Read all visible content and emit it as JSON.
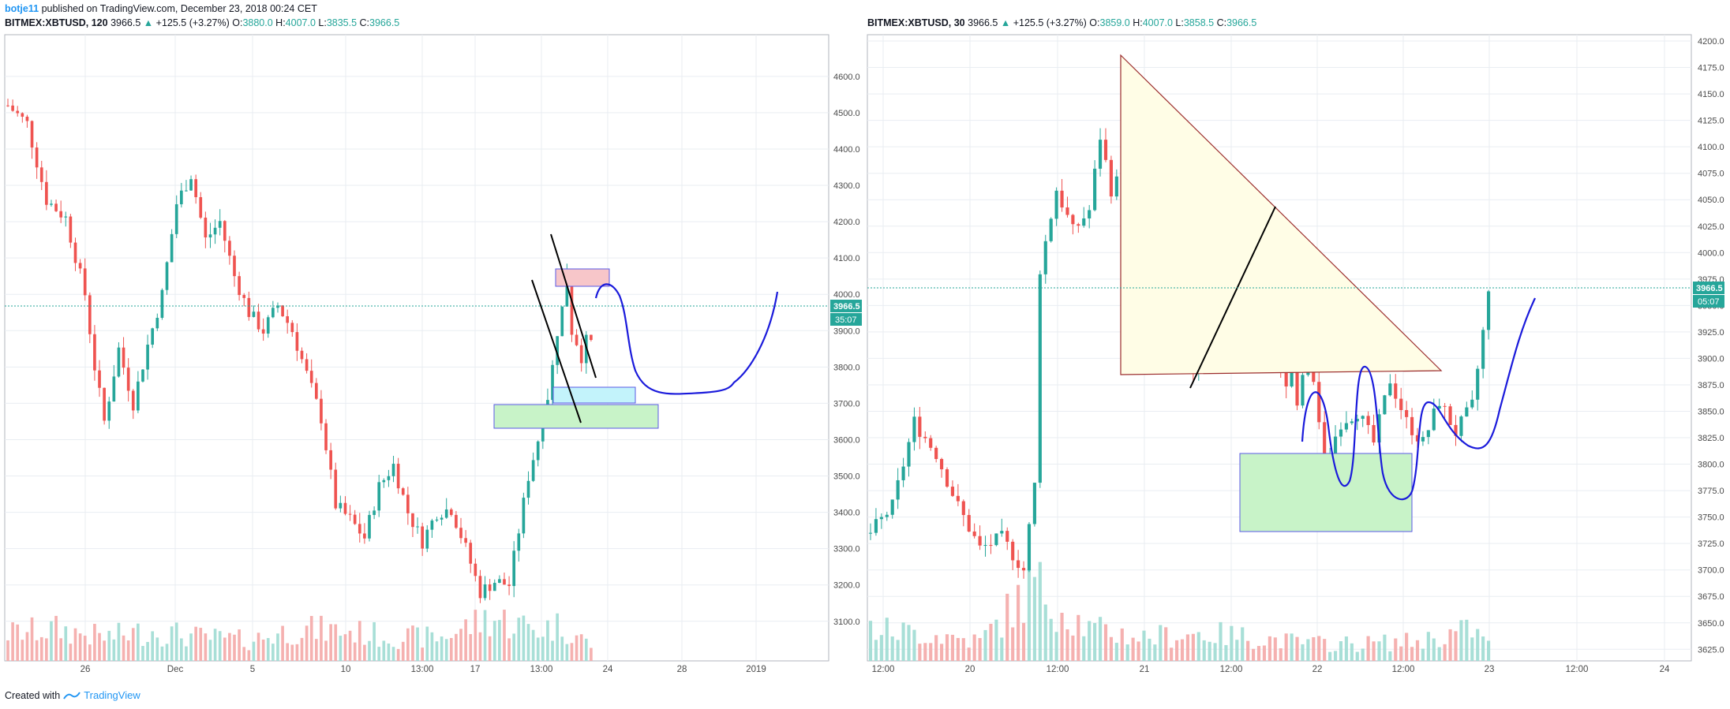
{
  "header": {
    "author": "botje11",
    "published": "published on TradingView.com, December 23, 2018 00:24 CET"
  },
  "footer": {
    "created_with": "Created with",
    "brand": "TradingView"
  },
  "colors": {
    "up": "#26a69a",
    "down": "#ef5350",
    "grid": "#e9edf2",
    "blue": "#1a1adb"
  },
  "chart_data": [
    {
      "type": "candlestick",
      "symbol": "BITMEX:XBTUSD, 120",
      "last": "3966.5",
      "change": "+125.5 (+3.27%)",
      "ohlc": {
        "O": "3880.0",
        "H": "4007.0",
        "L": "3835.5",
        "C": "3966.5"
      },
      "price_label": "3966.5",
      "countdown_label": "35:07",
      "y_ticks": [
        "4600.0",
        "4500.0",
        "4400.0",
        "4300.0",
        "4200.0",
        "4100.0",
        "4000.0",
        "3900.0",
        "3800.0",
        "3700.0",
        "3600.0",
        "3500.0",
        "3400.0",
        "3300.0",
        "3200.0",
        "3100.0"
      ],
      "ylim": [
        3030,
        4680
      ],
      "x_ticks": [
        "26",
        "Dec",
        "5",
        "10",
        "13:00",
        "17",
        "13:00",
        "24",
        "28",
        "2019"
      ],
      "price_path": [
        [
          0,
          4520
        ],
        [
          4,
          4470
        ],
        [
          8,
          4260
        ],
        [
          12,
          4210
        ],
        [
          16,
          4000
        ],
        [
          18,
          3800
        ],
        [
          20,
          3650
        ],
        [
          23,
          3850
        ],
        [
          26,
          3700
        ],
        [
          29,
          3860
        ],
        [
          32,
          4000
        ],
        [
          35,
          4250
        ],
        [
          38,
          4330
        ],
        [
          41,
          4150
        ],
        [
          44,
          4200
        ],
        [
          47,
          4050
        ],
        [
          50,
          3950
        ],
        [
          53,
          3900
        ],
        [
          56,
          3970
        ],
        [
          59,
          3900
        ],
        [
          62,
          3780
        ],
        [
          65,
          3660
        ],
        [
          68,
          3420
        ],
        [
          71,
          3380
        ],
        [
          74,
          3330
        ],
        [
          77,
          3470
        ],
        [
          80,
          3530
        ],
        [
          83,
          3400
        ],
        [
          86,
          3320
        ],
        [
          89,
          3400
        ],
        [
          92,
          3410
        ],
        [
          95,
          3300
        ],
        [
          98,
          3180
        ],
        [
          101,
          3210
        ],
        [
          104,
          3200
        ],
        [
          106,
          3350
        ],
        [
          108,
          3500
        ],
        [
          110,
          3600
        ],
        [
          112,
          3720
        ],
        [
          113,
          3800
        ],
        [
          114,
          3900
        ],
        [
          115,
          3960
        ],
        [
          116,
          4060
        ],
        [
          117,
          3900
        ],
        [
          118,
          3870
        ],
        [
          119,
          3830
        ],
        [
          120,
          3870
        ],
        [
          121,
          3866
        ]
      ],
      "volume_path": [
        [
          0,
          35
        ],
        [
          10,
          40
        ],
        [
          20,
          30
        ],
        [
          30,
          38
        ],
        [
          40,
          30
        ],
        [
          50,
          26
        ],
        [
          60,
          40
        ],
        [
          70,
          38
        ],
        [
          80,
          30
        ],
        [
          90,
          30
        ],
        [
          100,
          55
        ],
        [
          110,
          40
        ],
        [
          115,
          45
        ],
        [
          121,
          20
        ]
      ]
    },
    {
      "type": "candlestick",
      "symbol": "BITMEX:XBTUSD, 30",
      "last": "3966.5",
      "change": "+125.5 (+3.27%)",
      "ohlc": {
        "O": "3859.0",
        "H": "4007.0",
        "L": "3858.5",
        "C": "3966.5"
      },
      "price_label": "3966.5",
      "countdown_label": "05:07",
      "y_ticks": [
        "4200.0",
        "4175.0",
        "4150.0",
        "4125.0",
        "4100.0",
        "4075.0",
        "4050.0",
        "4025.0",
        "4000.0",
        "3975.0",
        "3950.0",
        "3925.0",
        "3900.0",
        "3875.0",
        "3850.0",
        "3825.0",
        "3800.0",
        "3775.0",
        "3750.0",
        "3725.0",
        "3700.0",
        "3675.0",
        "3650.0",
        "3625.0"
      ],
      "ylim": [
        3620,
        4203
      ],
      "x_ticks": [
        "12:00",
        "20",
        "12:00",
        "21",
        "12:00",
        "22",
        "12:00",
        "23",
        "12:00",
        "24"
      ],
      "price_path": [
        [
          0,
          3735
        ],
        [
          4,
          3760
        ],
        [
          8,
          3840
        ],
        [
          12,
          3810
        ],
        [
          16,
          3760
        ],
        [
          20,
          3720
        ],
        [
          24,
          3730
        ],
        [
          28,
          3700
        ],
        [
          30,
          3780
        ],
        [
          31,
          3985
        ],
        [
          34,
          4060
        ],
        [
          37,
          4020
        ],
        [
          40,
          4040
        ],
        [
          42,
          4110
        ],
        [
          44,
          4060
        ],
        [
          47,
          4080
        ],
        [
          49,
          3920
        ],
        [
          50,
          4000
        ],
        [
          53,
          4040
        ],
        [
          56,
          3960
        ],
        [
          59,
          3890
        ],
        [
          62,
          3930
        ],
        [
          65,
          3960
        ],
        [
          68,
          4040
        ],
        [
          71,
          3990
        ],
        [
          74,
          3920
        ],
        [
          76,
          3870
        ],
        [
          77,
          3900
        ],
        [
          78,
          3850
        ],
        [
          80,
          3920
        ],
        [
          83,
          3800
        ],
        [
          86,
          3840
        ],
        [
          89,
          3850
        ],
        [
          92,
          3820
        ],
        [
          95,
          3880
        ],
        [
          98,
          3840
        ],
        [
          101,
          3820
        ],
        [
          104,
          3860
        ],
        [
          107,
          3830
        ],
        [
          110,
          3855
        ],
        [
          113,
          3960
        ]
      ],
      "volume_path": [
        [
          0,
          40
        ],
        [
          10,
          35
        ],
        [
          20,
          25
        ],
        [
          30,
          95
        ],
        [
          40,
          40
        ],
        [
          50,
          30
        ],
        [
          60,
          35
        ],
        [
          70,
          30
        ],
        [
          80,
          22
        ],
        [
          90,
          22
        ],
        [
          100,
          25
        ],
        [
          110,
          40
        ],
        [
          113,
          20
        ]
      ]
    }
  ]
}
